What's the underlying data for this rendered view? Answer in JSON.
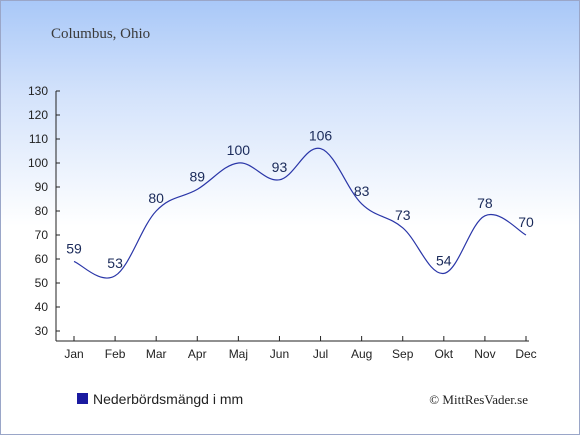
{
  "chart_data": {
    "type": "line",
    "title": "Columbus, Ohio",
    "categories": [
      "Jan",
      "Feb",
      "Mar",
      "Apr",
      "Maj",
      "Jun",
      "Jul",
      "Aug",
      "Sep",
      "Okt",
      "Nov",
      "Dec"
    ],
    "series": [
      {
        "name": "Nederbördsmängd i mm",
        "values": [
          59,
          53,
          80,
          89,
          100,
          93,
          106,
          83,
          73,
          54,
          78,
          70
        ]
      }
    ],
    "ylim": [
      30,
      130
    ],
    "yticks": [
      30,
      40,
      50,
      60,
      70,
      80,
      90,
      100,
      110,
      120,
      130
    ],
    "xlabel": "",
    "ylabel": "",
    "grid": false,
    "legend_position": "bottom-left",
    "line_color": "#2a36a8",
    "legend_marker_color": "#1a1aa0"
  },
  "credit": "© MittResVader.se"
}
